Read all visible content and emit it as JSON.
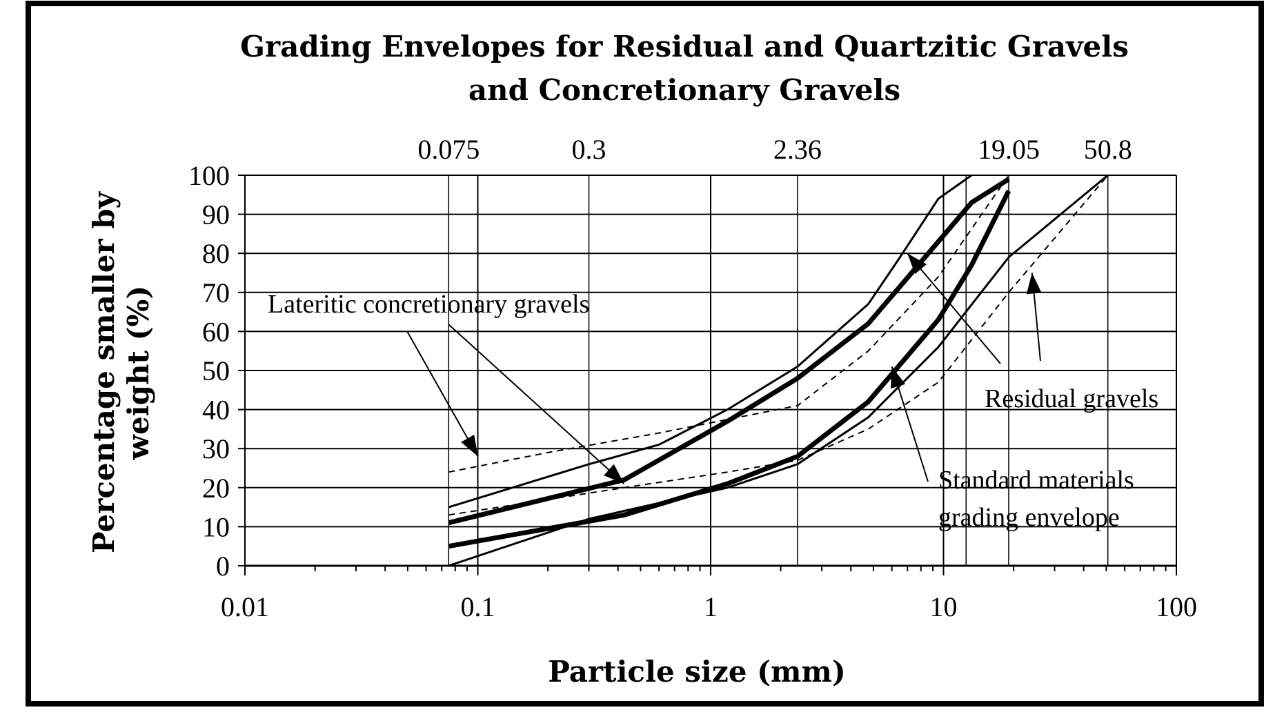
{
  "chart_data": {
    "type": "line",
    "title_lines": [
      "Grading Envelopes for Residual and Quartzitic  Gravels",
      "and Concretionary Gravels"
    ],
    "xlabel": "Particle size (mm)",
    "ylabel_lines": [
      "Percentage smaller by",
      "weight (%)"
    ],
    "x_scale": "log",
    "xlim": [
      0.01,
      100
    ],
    "ylim": [
      0,
      100
    ],
    "x_ticks": [
      {
        "value": 0.01,
        "label": "0.01"
      },
      {
        "value": 0.1,
        "label": "0.1"
      },
      {
        "value": 1,
        "label": "1"
      },
      {
        "value": 10,
        "label": "10"
      },
      {
        "value": 100,
        "label": "100"
      }
    ],
    "y_ticks": [
      {
        "value": 0,
        "label": "0"
      },
      {
        "value": 10,
        "label": "10"
      },
      {
        "value": 20,
        "label": "20"
      },
      {
        "value": 30,
        "label": "30"
      },
      {
        "value": 40,
        "label": "40"
      },
      {
        "value": 50,
        "label": "50"
      },
      {
        "value": 60,
        "label": "60"
      },
      {
        "value": 70,
        "label": "70"
      },
      {
        "value": 80,
        "label": "80"
      },
      {
        "value": 90,
        "label": "90"
      },
      {
        "value": 100,
        "label": "100"
      }
    ],
    "sieve_sizes": [
      {
        "value": 0.075,
        "label": "0.075"
      },
      {
        "value": 0.3,
        "label": "0.3"
      },
      {
        "value": 2.36,
        "label": "2.36"
      },
      {
        "value": 19.05,
        "label": "19.05"
      },
      {
        "value": 50.8,
        "label": "50.8"
      }
    ],
    "extra_gridlines_x": [
      0.075,
      0.3,
      2.36,
      12.5,
      19.05,
      50.8
    ],
    "grid": true,
    "series": [
      {
        "style": "thin",
        "points": [
          [
            0.075,
            15
          ],
          [
            0.3,
            26
          ],
          [
            0.6,
            31
          ],
          [
            1.18,
            40
          ],
          [
            2.36,
            51
          ],
          [
            4.75,
            67
          ],
          [
            6.5,
            79
          ],
          [
            9.5,
            94
          ],
          [
            12.5,
            99
          ],
          [
            13.2,
            100
          ]
        ]
      },
      {
        "style": "thin",
        "points": [
          [
            0.075,
            0
          ],
          [
            0.3,
            12
          ],
          [
            1.18,
            20
          ],
          [
            2.36,
            26
          ],
          [
            4.75,
            38
          ],
          [
            9.5,
            56
          ],
          [
            19.05,
            79
          ],
          [
            50.8,
            100
          ]
        ]
      },
      {
        "style": "thick",
        "points": [
          [
            0.075,
            11
          ],
          [
            0.425,
            22
          ],
          [
            1.18,
            37
          ],
          [
            2.36,
            48
          ],
          [
            4.75,
            62
          ],
          [
            9.5,
            83
          ],
          [
            13.2,
            93
          ],
          [
            19.05,
            99
          ]
        ]
      },
      {
        "style": "thick",
        "points": [
          [
            0.075,
            5
          ],
          [
            0.425,
            13
          ],
          [
            1.18,
            21
          ],
          [
            2.36,
            28
          ],
          [
            4.75,
            42
          ],
          [
            9.5,
            63
          ],
          [
            13.2,
            77
          ],
          [
            19.05,
            96
          ]
        ]
      },
      {
        "style": "dashed",
        "points": [
          [
            0.075,
            24
          ],
          [
            0.2,
            29
          ],
          [
            0.6,
            34
          ],
          [
            2.36,
            41
          ],
          [
            4.75,
            55
          ],
          [
            9.5,
            74
          ],
          [
            19.05,
            100
          ]
        ]
      },
      {
        "style": "dashed",
        "points": [
          [
            0.075,
            13
          ],
          [
            0.425,
            20
          ],
          [
            1.18,
            24
          ],
          [
            2.36,
            27
          ],
          [
            4.75,
            35
          ],
          [
            9.5,
            47
          ],
          [
            19.05,
            70
          ],
          [
            50.8,
            100
          ]
        ]
      }
    ],
    "annotations": [
      {
        "text": "Lateritic concretionary gravels",
        "arrow_targets": [
          [
            0.1,
            28
          ],
          [
            0.425,
            21
          ]
        ]
      },
      {
        "text": "Residual gravels",
        "arrow_targets": [
          [
            7,
            80
          ],
          [
            24,
            75
          ]
        ]
      },
      {
        "text_lines": [
          "Standard materials",
          "grading envelope"
        ],
        "arrow_targets": [
          [
            6,
            51
          ]
        ]
      }
    ]
  }
}
